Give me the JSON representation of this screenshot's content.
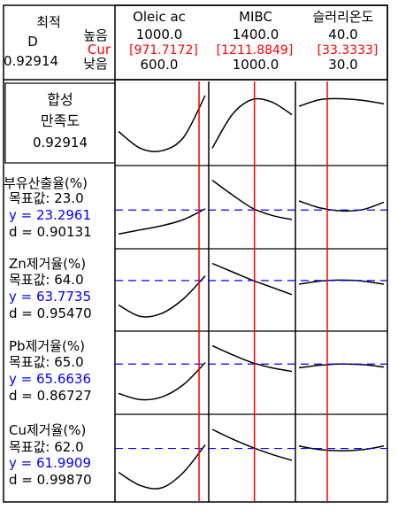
{
  "header": {
    "left": {
      "title": "최적",
      "d_label": "D",
      "d_value": "0.92914",
      "high_label": "높음",
      "cur_label": "Cur",
      "low_label": "낮음"
    },
    "factors": [
      {
        "name": "Oleic ac",
        "high": "1000.0",
        "cur": "[971.7172]",
        "low": "600.0",
        "low_value": 600,
        "high_value": 1000,
        "cur_value": 971.7172
      },
      {
        "name": "MIBC",
        "high": "1400.0",
        "cur": "[1211.8849]",
        "low": "1000.0",
        "low_value": 1000,
        "high_value": 1400,
        "cur_value": 1211.8849
      },
      {
        "name": "슬러리온도",
        "high": "40.0",
        "cur": "[33.3333]",
        "low": "30.0",
        "low_value": 30,
        "high_value": 40,
        "cur_value": 33.3333
      }
    ]
  },
  "rows": [
    {
      "title_line1": "합성",
      "title_line2": "만족도",
      "value": "0.92914",
      "kind": "composite"
    },
    {
      "title": "부유산출율(%)",
      "target": "목표값: 23.0",
      "y": "y = 23.2961",
      "d": "d = 0.90131",
      "kind": "response"
    },
    {
      "title": "Zn제거율(%)",
      "target": "목표값: 64.0",
      "y": "y = 63.7735",
      "d": "d = 0.95470",
      "kind": "response"
    },
    {
      "title": "Pb제거율(%)",
      "target": "목표값: 65.0",
      "y": "y = 65.6636",
      "d": "d = 0.86727",
      "kind": "response"
    },
    {
      "title": "Cu제거율(%)",
      "target": "목표값: 62.0",
      "y": "y = 61.9909",
      "d": "d = 0.99870",
      "kind": "response"
    }
  ],
  "colors": {
    "cur": "#ff0000",
    "y_line": "#0000ff",
    "curve": "#000000",
    "border": "#000000"
  },
  "chart_data": {
    "type": "line",
    "x_factors": [
      "Oleic ac",
      "MIBC",
      "슬러리온도"
    ],
    "x_ranges": [
      [
        600,
        1000
      ],
      [
        1000,
        1400
      ],
      [
        30,
        40
      ]
    ],
    "current_settings": [
      971.7172,
      1211.8849,
      33.3333
    ],
    "series": [
      {
        "name": "합성 만족도",
        "predicted_at_current": 0.92914,
        "curves": [
          {
            "x": [
              600,
              700,
              800,
              900,
              1000
            ],
            "y": [
              0.55,
              0.35,
              0.32,
              0.48,
              0.98
            ]
          },
          {
            "x": [
              1000,
              1100,
              1200,
              1300,
              1400
            ],
            "y": [
              0.35,
              0.75,
              0.93,
              0.9,
              0.75
            ]
          },
          {
            "x": [
              30,
              32.5,
              35,
              37.5,
              40
            ],
            "y": [
              0.85,
              0.93,
              0.94,
              0.92,
              0.88
            ]
          }
        ]
      },
      {
        "name": "부유산출율(%)",
        "target": 23.0,
        "predicted_at_current": 23.2961,
        "desirability": 0.90131,
        "curves": [
          {
            "x": [
              600,
              700,
              800,
              900,
              1000
            ],
            "y": [
              17.5,
              18.5,
              19.5,
              21.0,
              23.6
            ]
          },
          {
            "x": [
              1000,
              1100,
              1200,
              1300,
              1400
            ],
            "y": [
              30.5,
              27.0,
              23.8,
              22.0,
              21.0
            ]
          },
          {
            "x": [
              30,
              32.5,
              35,
              37.5,
              40
            ],
            "y": [
              25.5,
              23.8,
              23.1,
              23.4,
              25.2
            ]
          }
        ]
      },
      {
        "name": "Zn제거율(%)",
        "target": 64.0,
        "predicted_at_current": 63.7735,
        "desirability": 0.9547,
        "curves": [
          {
            "x": [
              600,
              700,
              800,
              900,
              1000
            ],
            "y": [
              52.0,
              46.5,
              48.0,
              55.0,
              66.0
            ]
          },
          {
            "x": [
              1000,
              1100,
              1200,
              1300,
              1400
            ],
            "y": [
              72.0,
              68.0,
              64.0,
              60.5,
              57.0
            ]
          },
          {
            "x": [
              30,
              32.5,
              35,
              37.5,
              40
            ],
            "y": [
              62.0,
              63.5,
              64.0,
              63.5,
              62.0
            ]
          }
        ]
      },
      {
        "name": "Pb제거율(%)",
        "target": 65.0,
        "predicted_at_current": 65.6636,
        "desirability": 0.86727,
        "curves": [
          {
            "x": [
              600,
              700,
              800,
              900,
              1000
            ],
            "y": [
              49.0,
              45.5,
              47.0,
              54.0,
              66.5
            ]
          },
          {
            "x": [
              1000,
              1100,
              1200,
              1300,
              1400
            ],
            "y": [
              76.0,
              71.0,
              66.5,
              63.5,
              61.5
            ]
          },
          {
            "x": [
              30,
              32.5,
              35,
              37.5,
              40
            ],
            "y": [
              63.5,
              65.0,
              65.7,
              65.3,
              64.0
            ]
          }
        ]
      },
      {
        "name": "Cu제거율(%)",
        "target": 62.0,
        "predicted_at_current": 61.9909,
        "desirability": 0.9987,
        "curves": [
          {
            "x": [
              600,
              700,
              800,
              900,
              1000
            ],
            "y": [
              52.0,
              46.5,
              45.5,
              52.0,
              63.5
            ]
          },
          {
            "x": [
              1000,
              1100,
              1200,
              1300,
              1400
            ],
            "y": [
              70.0,
              66.0,
              62.5,
              59.5,
              57.0
            ]
          },
          {
            "x": [
              30,
              32.5,
              35,
              37.5,
              40
            ],
            "y": [
              63.0,
              61.5,
              61.0,
              61.5,
              63.0
            ]
          }
        ]
      }
    ]
  }
}
